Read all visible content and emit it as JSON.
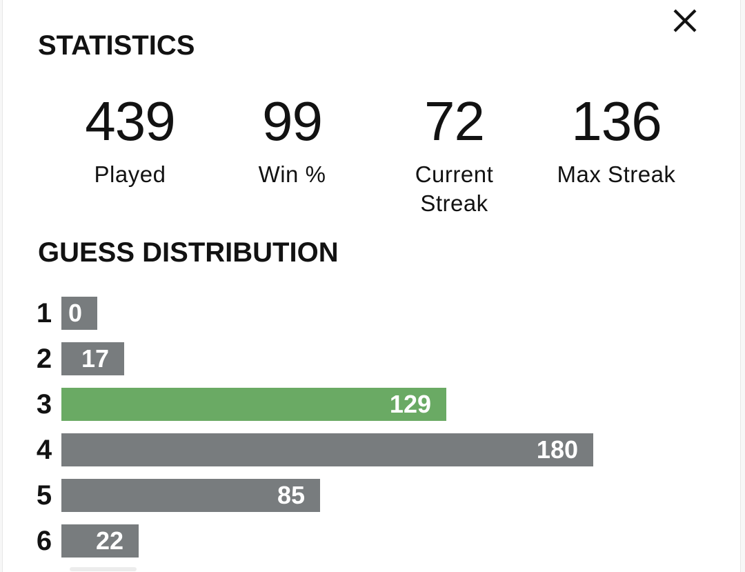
{
  "modal": {
    "title": "STATISTICS"
  },
  "stats": {
    "items": [
      {
        "value": "439",
        "label": "Played"
      },
      {
        "value": "99",
        "label": "Win %"
      },
      {
        "value": "72",
        "label": "Current Streak"
      },
      {
        "value": "136",
        "label": "Max Streak"
      }
    ]
  },
  "distribution": {
    "title": "GUESS DISTRIBUTION"
  },
  "chart_data": {
    "type": "bar",
    "orientation": "horizontal",
    "title": "GUESS DISTRIBUTION",
    "categories": [
      "1",
      "2",
      "3",
      "4",
      "5",
      "6"
    ],
    "values": [
      0,
      17,
      129,
      180,
      85,
      22
    ],
    "highlight_index": 2,
    "highlighted_category": "3",
    "xlim": [
      0,
      180
    ],
    "grid": false,
    "legend": "none",
    "bar_color": "#787c7e",
    "highlight_color": "#6aaa64",
    "value_label_color": "#ffffff"
  },
  "colors": {
    "background": "#f7f7f7",
    "surface": "#ffffff",
    "text": "#121212",
    "border": "#e7e7e7"
  }
}
